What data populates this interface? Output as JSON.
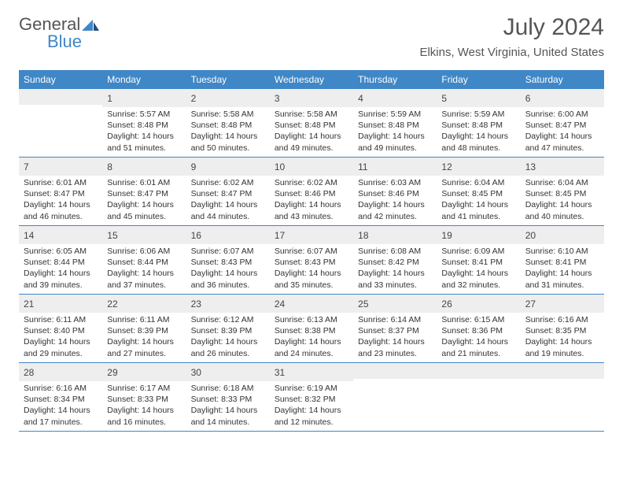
{
  "logo": {
    "part1": "General",
    "part2": "Blue"
  },
  "title": "July 2024",
  "location": "Elkins, West Virginia, United States",
  "colors": {
    "header_bg": "#3f87c7",
    "row_border": "#3f87c7",
    "daynum_bg": "#eeeeee",
    "text": "#333333",
    "logo_gray": "#555555",
    "logo_blue": "#3f87c7"
  },
  "dayNames": [
    "Sunday",
    "Monday",
    "Tuesday",
    "Wednesday",
    "Thursday",
    "Friday",
    "Saturday"
  ],
  "startOffset": 1,
  "days": [
    {
      "n": 1,
      "sunrise": "5:57 AM",
      "sunset": "8:48 PM",
      "daylight": "14 hours and 51 minutes."
    },
    {
      "n": 2,
      "sunrise": "5:58 AM",
      "sunset": "8:48 PM",
      "daylight": "14 hours and 50 minutes."
    },
    {
      "n": 3,
      "sunrise": "5:58 AM",
      "sunset": "8:48 PM",
      "daylight": "14 hours and 49 minutes."
    },
    {
      "n": 4,
      "sunrise": "5:59 AM",
      "sunset": "8:48 PM",
      "daylight": "14 hours and 49 minutes."
    },
    {
      "n": 5,
      "sunrise": "5:59 AM",
      "sunset": "8:48 PM",
      "daylight": "14 hours and 48 minutes."
    },
    {
      "n": 6,
      "sunrise": "6:00 AM",
      "sunset": "8:47 PM",
      "daylight": "14 hours and 47 minutes."
    },
    {
      "n": 7,
      "sunrise": "6:01 AM",
      "sunset": "8:47 PM",
      "daylight": "14 hours and 46 minutes."
    },
    {
      "n": 8,
      "sunrise": "6:01 AM",
      "sunset": "8:47 PM",
      "daylight": "14 hours and 45 minutes."
    },
    {
      "n": 9,
      "sunrise": "6:02 AM",
      "sunset": "8:47 PM",
      "daylight": "14 hours and 44 minutes."
    },
    {
      "n": 10,
      "sunrise": "6:02 AM",
      "sunset": "8:46 PM",
      "daylight": "14 hours and 43 minutes."
    },
    {
      "n": 11,
      "sunrise": "6:03 AM",
      "sunset": "8:46 PM",
      "daylight": "14 hours and 42 minutes."
    },
    {
      "n": 12,
      "sunrise": "6:04 AM",
      "sunset": "8:45 PM",
      "daylight": "14 hours and 41 minutes."
    },
    {
      "n": 13,
      "sunrise": "6:04 AM",
      "sunset": "8:45 PM",
      "daylight": "14 hours and 40 minutes."
    },
    {
      "n": 14,
      "sunrise": "6:05 AM",
      "sunset": "8:44 PM",
      "daylight": "14 hours and 39 minutes."
    },
    {
      "n": 15,
      "sunrise": "6:06 AM",
      "sunset": "8:44 PM",
      "daylight": "14 hours and 37 minutes."
    },
    {
      "n": 16,
      "sunrise": "6:07 AM",
      "sunset": "8:43 PM",
      "daylight": "14 hours and 36 minutes."
    },
    {
      "n": 17,
      "sunrise": "6:07 AM",
      "sunset": "8:43 PM",
      "daylight": "14 hours and 35 minutes."
    },
    {
      "n": 18,
      "sunrise": "6:08 AM",
      "sunset": "8:42 PM",
      "daylight": "14 hours and 33 minutes."
    },
    {
      "n": 19,
      "sunrise": "6:09 AM",
      "sunset": "8:41 PM",
      "daylight": "14 hours and 32 minutes."
    },
    {
      "n": 20,
      "sunrise": "6:10 AM",
      "sunset": "8:41 PM",
      "daylight": "14 hours and 31 minutes."
    },
    {
      "n": 21,
      "sunrise": "6:11 AM",
      "sunset": "8:40 PM",
      "daylight": "14 hours and 29 minutes."
    },
    {
      "n": 22,
      "sunrise": "6:11 AM",
      "sunset": "8:39 PM",
      "daylight": "14 hours and 27 minutes."
    },
    {
      "n": 23,
      "sunrise": "6:12 AM",
      "sunset": "8:39 PM",
      "daylight": "14 hours and 26 minutes."
    },
    {
      "n": 24,
      "sunrise": "6:13 AM",
      "sunset": "8:38 PM",
      "daylight": "14 hours and 24 minutes."
    },
    {
      "n": 25,
      "sunrise": "6:14 AM",
      "sunset": "8:37 PM",
      "daylight": "14 hours and 23 minutes."
    },
    {
      "n": 26,
      "sunrise": "6:15 AM",
      "sunset": "8:36 PM",
      "daylight": "14 hours and 21 minutes."
    },
    {
      "n": 27,
      "sunrise": "6:16 AM",
      "sunset": "8:35 PM",
      "daylight": "14 hours and 19 minutes."
    },
    {
      "n": 28,
      "sunrise": "6:16 AM",
      "sunset": "8:34 PM",
      "daylight": "14 hours and 17 minutes."
    },
    {
      "n": 29,
      "sunrise": "6:17 AM",
      "sunset": "8:33 PM",
      "daylight": "14 hours and 16 minutes."
    },
    {
      "n": 30,
      "sunrise": "6:18 AM",
      "sunset": "8:33 PM",
      "daylight": "14 hours and 14 minutes."
    },
    {
      "n": 31,
      "sunrise": "6:19 AM",
      "sunset": "8:32 PM",
      "daylight": "14 hours and 12 minutes."
    }
  ],
  "labels": {
    "sunrise": "Sunrise: ",
    "sunset": "Sunset: ",
    "daylight": "Daylight: "
  }
}
